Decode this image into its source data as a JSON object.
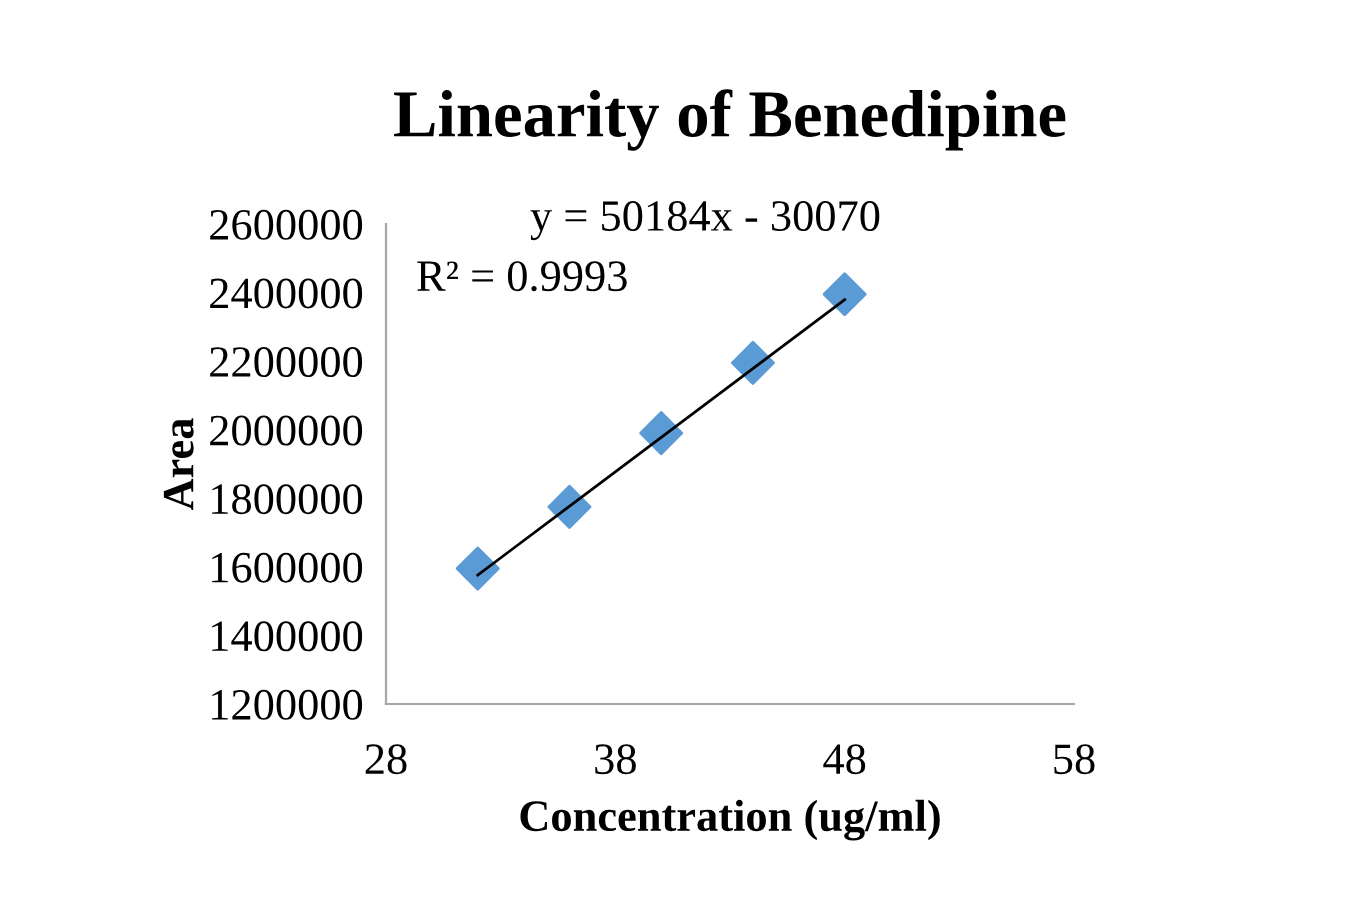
{
  "chart_data": {
    "type": "scatter",
    "title": "Linearity of Benedipine",
    "xlabel": "Concentration (ug/ml)",
    "ylabel": "Area",
    "annotations": [
      "y = 50184x - 30070",
      "R² = 0.9993"
    ],
    "x": [
      32,
      36,
      40,
      44,
      48
    ],
    "series": [
      {
        "color": "#5b9bd5",
        "marker": "diamond",
        "values": [
          1595000,
          1775000,
          1990000,
          2195000,
          2395000
        ]
      },
      {
        "type": "line",
        "color": "#000000",
        "x": [
          32,
          48
        ],
        "values": [
          1576000,
          2379000
        ],
        "marker": "none",
        "line_style": "solid"
      }
    ],
    "xlim": [
      28,
      58
    ],
    "xticks": [
      28,
      38,
      48,
      58
    ],
    "ylim": [
      1200000,
      2600000
    ],
    "yticks": [
      1200000,
      1400000,
      1600000,
      1800000,
      2000000,
      2200000,
      2400000,
      2600000
    ],
    "grid": false,
    "legend": false
  }
}
